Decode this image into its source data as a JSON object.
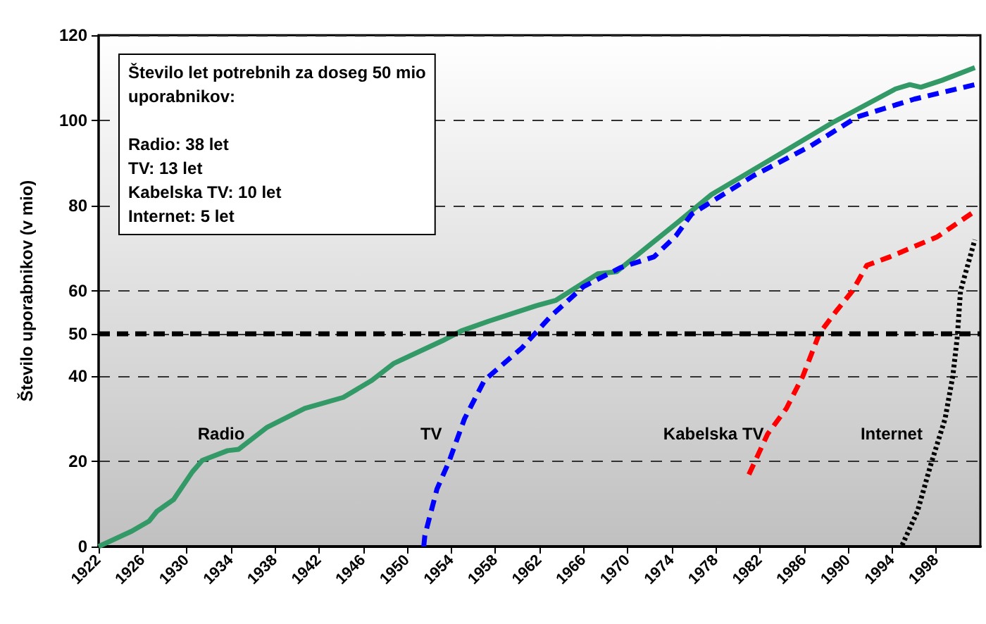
{
  "chart_data": {
    "type": "line",
    "ylabel": "Število uporabnikov (v mio)",
    "xlim": [
      1922,
      2002
    ],
    "xticks": [
      1922,
      1926,
      1930,
      1934,
      1938,
      1942,
      1946,
      1950,
      1954,
      1958,
      1962,
      1966,
      1970,
      1974,
      1978,
      1982,
      1986,
      1990,
      1994,
      1998
    ],
    "ylim": [
      0,
      120
    ],
    "yticks": [
      0,
      20,
      40,
      50,
      60,
      80,
      100,
      120
    ],
    "grid": "y",
    "marker": "none",
    "ref_lines": [
      {
        "axis": "y",
        "value": 50,
        "color": "#000000",
        "line_style": "dashed"
      }
    ],
    "series": [
      {
        "name": "Radio",
        "color": "#339966",
        "line_style": "solid",
        "x": [
          1922,
          1925,
          1926.6,
          1927.3,
          1928.8,
          1930.5,
          1931.4,
          1933.7,
          1934.7,
          1937.3,
          1940.7,
          1944.2,
          1946.8,
          1948.8,
          1953.2,
          1954.9,
          1957.4,
          1961.7,
          1963.5,
          1967.3,
          1969,
          1974.5,
          1977.6,
          1984.4,
          1988.6,
          1994.3,
          1995.6,
          1996.6,
          1998.5,
          2001.5
        ],
        "values": [
          0,
          3.6,
          6,
          8.3,
          11,
          17.5,
          20.2,
          22.5,
          22.8,
          28,
          32.4,
          35,
          39,
          43,
          48.3,
          50.6,
          52.9,
          56.5,
          57.8,
          64,
          64.5,
          76,
          82.6,
          93,
          99.5,
          107.4,
          108.4,
          107.8,
          109.4,
          112.4
        ]
      },
      {
        "name": "TV",
        "color": "#0000ff",
        "line_style": "dashed",
        "x": [
          1951.5,
          1951.6,
          1952.7,
          1953.8,
          1955.2,
          1957,
          1960.4,
          1963,
          1966,
          1969.4,
          1972.4,
          1974.4,
          1975.8,
          1981.4,
          1986.6,
          1990.8,
          1996,
          2001.5
        ],
        "values": [
          0,
          2.6,
          13.5,
          20,
          30,
          39,
          46.6,
          54,
          61,
          65.5,
          68,
          73,
          78,
          87,
          94,
          100.8,
          105,
          108.4
        ]
      },
      {
        "name": "Kabelska TV",
        "color": "#ff0000",
        "line_style": "dashed",
        "x": [
          1981,
          1982.7,
          1984.4,
          1985.9,
          1987.4,
          1989,
          1990.4,
          1991.7,
          1993.8,
          1998.1,
          2001.5
        ],
        "values": [
          16.9,
          26.4,
          32.4,
          40,
          50,
          55.5,
          60,
          66,
          68,
          72.7,
          78.7
        ]
      },
      {
        "name": "Internet",
        "color": "#000000",
        "line_style": "dotted",
        "x": [
          1994.9,
          1996.3,
          1997.5,
          1998.8,
          1999.5,
          1999.9,
          2000.2,
          2001.5
        ],
        "values": [
          0.3,
          8.3,
          19.2,
          30,
          40,
          49,
          60,
          72
        ]
      }
    ],
    "annotations": [
      "Število let potrebnih za doseg 50 mio\nuporabnikov:\n\nRadio: 38 let\nTV: 13 let\nKabelska TV: 10 let\nInternet: 5 let"
    ]
  }
}
